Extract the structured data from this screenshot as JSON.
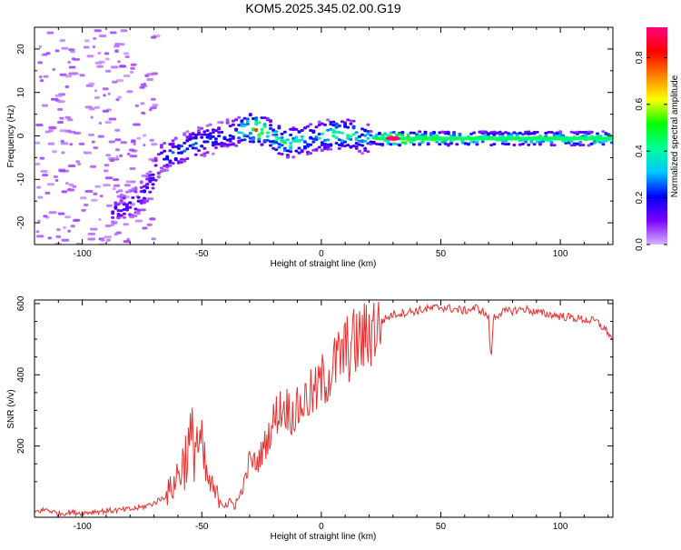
{
  "figure_title": "KOM5.2025.345.02.00.G19",
  "colors": {
    "snr_line": "#e8302f",
    "spectrogram_background": "#ffffff",
    "colorbar_stops": [
      "#d9b3ff",
      "#7a00ff",
      "#0000ff",
      "#00c8ff",
      "#00ff96",
      "#00ff00",
      "#ffff00",
      "#ff7f00",
      "#ff0000",
      "#ff0080"
    ]
  },
  "chart_data": [
    {
      "type": "heatmap",
      "title": "KOM5.2025.345.02.00.G19",
      "xlabel": "Height of straight line (km)",
      "ylabel": "Frequency (Hz)",
      "xlim": [
        -120,
        122
      ],
      "ylim": [
        -25,
        25
      ],
      "xticks": [
        -100,
        -50,
        0,
        50,
        100
      ],
      "yticks": [
        -20,
        -10,
        0,
        10,
        20
      ],
      "colorbar": {
        "label": "Normalized spectral amplitude",
        "range": [
          0,
          0.93
        ],
        "ticks": [
          0.0,
          0.2,
          0.4,
          0.6,
          0.8
        ]
      },
      "ridge": {
        "description": "dominant spectral ridge (frequency in Hz vs height in km)",
        "x": [
          -85,
          -78,
          -72,
          -68,
          -62,
          -55,
          -48,
          -42,
          -36,
          -30,
          -27,
          -24,
          -20,
          -16,
          -12,
          -8,
          -4,
          0,
          4,
          8,
          12,
          16,
          20,
          30,
          50,
          80,
          110,
          122
        ],
        "y": [
          -17,
          -15,
          -11,
          -5,
          -4,
          -2,
          -1,
          0,
          1,
          1.8,
          1.5,
          1.0,
          -0.5,
          -1.5,
          -1.5,
          -1.0,
          -0.5,
          0.0,
          0.5,
          0.5,
          0.2,
          -0.5,
          -0.5,
          -0.6,
          -0.6,
          -0.6,
          -0.6,
          -0.6
        ],
        "amplitude": [
          0.15,
          0.18,
          0.2,
          0.22,
          0.25,
          0.28,
          0.25,
          0.22,
          0.3,
          0.55,
          0.8,
          0.45,
          0.4,
          0.45,
          0.4,
          0.35,
          0.3,
          0.35,
          0.45,
          0.5,
          0.4,
          0.3,
          0.35,
          0.93,
          0.55,
          0.5,
          0.5,
          0.5
        ]
      }
    },
    {
      "type": "line",
      "xlabel": "Height of straight line (km)",
      "ylabel": "SNR (v/v)",
      "xlim": [
        -120,
        122
      ],
      "ylim": [
        0,
        610
      ],
      "xticks": [
        -100,
        -50,
        0,
        50,
        100
      ],
      "yticks": [
        200,
        400,
        600
      ],
      "series": [
        {
          "name": "SNR",
          "x": [
            -120,
            -115,
            -110,
            -105,
            -100,
            -95,
            -90,
            -85,
            -80,
            -75,
            -70,
            -65,
            -62,
            -58,
            -55,
            -52,
            -50,
            -48,
            -45,
            -42,
            -40,
            -38,
            -35,
            -32,
            -30,
            -27,
            -25,
            -22,
            -20,
            -18,
            -15,
            -12,
            -10,
            -8,
            -5,
            -2,
            0,
            3,
            6,
            9,
            12,
            15,
            18,
            20,
            25,
            30,
            35,
            40,
            45,
            50,
            55,
            60,
            65,
            68,
            70,
            71,
            72,
            75,
            80,
            85,
            90,
            95,
            100,
            105,
            110,
            115,
            120,
            122
          ],
          "y": [
            15,
            22,
            10,
            14,
            12,
            16,
            18,
            20,
            22,
            28,
            40,
            60,
            90,
            150,
            200,
            220,
            180,
            110,
            70,
            50,
            40,
            35,
            45,
            100,
            160,
            150,
            180,
            230,
            270,
            300,
            310,
            290,
            300,
            320,
            340,
            350,
            380,
            400,
            430,
            460,
            480,
            490,
            500,
            520,
            550,
            570,
            575,
            580,
            585,
            590,
            585,
            580,
            588,
            575,
            560,
            430,
            560,
            575,
            580,
            585,
            575,
            570,
            565,
            560,
            555,
            550,
            520,
            490
          ]
        }
      ]
    }
  ]
}
